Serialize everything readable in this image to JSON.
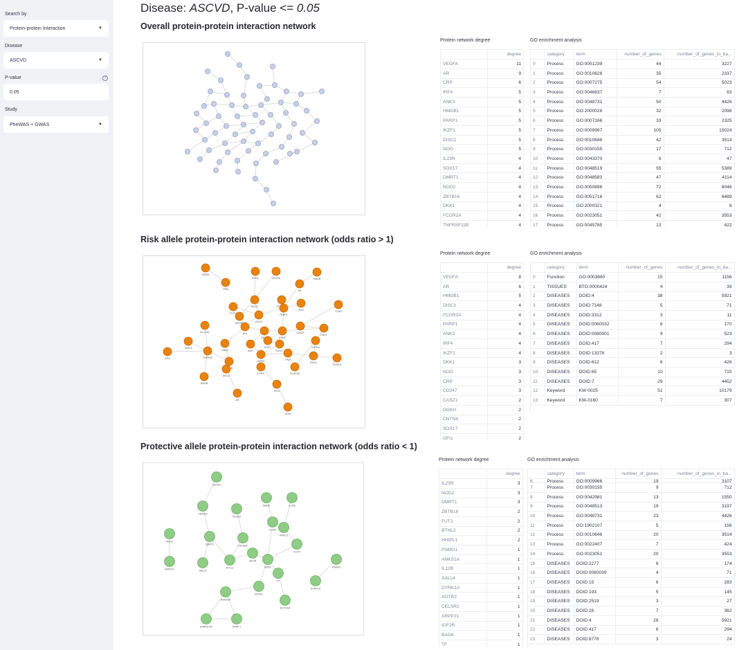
{
  "sidebar": {
    "search_by_label": "Search by",
    "search_by_value": "Protein-protein Interaction",
    "disease_label": "Disease",
    "disease_value": "ASCVD",
    "pvalue_label": "P-value",
    "pvalue_value": "0.05",
    "study_label": "Study",
    "study_value": "PheWAS + GWAS"
  },
  "header": {
    "title_prefix": "Disease: ",
    "title_disease": "ASCVD",
    "title_mid": ", P-value <= ",
    "title_pvalue": "0.05"
  },
  "sections": [
    {
      "title": "Overall protein-protein interaction network",
      "degree_caption": "Protein network degree",
      "go_caption": "GO enrichment analysis",
      "degree_header": "degree",
      "degree_rows": [
        [
          "VEGFA",
          "11"
        ],
        [
          "AR",
          "9"
        ],
        [
          "CRP",
          "6"
        ],
        [
          "IRF4",
          "5"
        ],
        [
          "ANK3",
          "5"
        ],
        [
          "HMGB1",
          "5"
        ],
        [
          "PARP1",
          "5"
        ],
        [
          "IKZF1",
          "5"
        ],
        [
          "DISC1",
          "5"
        ],
        [
          "NOG",
          "5"
        ],
        [
          "IL23R",
          "4"
        ],
        [
          "SOX17",
          "4"
        ],
        [
          "DMRT1",
          "4"
        ],
        [
          "NOD2",
          "4"
        ],
        [
          "ZBTB16",
          "4"
        ],
        [
          "DKK1",
          "4"
        ],
        [
          "FCGR2A",
          "4"
        ],
        [
          "TNFRSF11B",
          "4"
        ]
      ],
      "go_headers": [
        "",
        "category",
        "term",
        "number_of_genes",
        "number_of_genes_in_ba..."
      ],
      "go_rows": [
        [
          "0",
          "Process",
          "GO:0051239",
          "44",
          "3227"
        ],
        [
          "1",
          "Process",
          "GO:0010628",
          "35",
          "2337"
        ],
        [
          "2",
          "Process",
          "GO:0007275",
          "54",
          "5023"
        ],
        [
          "3",
          "Process",
          "GO:0046637",
          "7",
          "63"
        ],
        [
          "4",
          "Process",
          "GO:0048731",
          "50",
          "4426"
        ],
        [
          "5",
          "Process",
          "GO:2000026",
          "32",
          "2096"
        ],
        [
          "6",
          "Process",
          "GO:0007166",
          "33",
          "2325"
        ],
        [
          "7",
          "Process",
          "GO:0009987",
          "105",
          "15024"
        ],
        [
          "8",
          "Process",
          "GO:0010646",
          "42",
          "3514"
        ],
        [
          "9",
          "Process",
          "GO:0030155",
          "17",
          "712"
        ],
        [
          "10",
          "Process",
          "GO:0043370",
          "6",
          "47"
        ],
        [
          "11",
          "Process",
          "GO:0048519",
          "55",
          "5389"
        ],
        [
          "12",
          "Process",
          "GO:0048583",
          "47",
          "4114"
        ],
        [
          "13",
          "Process",
          "GO:0050896",
          "72",
          "8046"
        ],
        [
          "14",
          "Process",
          "GO:0051716",
          "62",
          "6489"
        ],
        [
          "15",
          "Process",
          "GO:2000321",
          "4",
          "8"
        ],
        [
          "16",
          "Process",
          "GO:0023051",
          "42",
          "3553"
        ],
        [
          "17",
          "Process",
          "GO:0045785",
          "13",
          "422"
        ]
      ]
    },
    {
      "title": "Risk allele protein-protein interaction network (odds ratio > 1)",
      "degree_caption": "Protein network degree",
      "go_caption": "GO enrichment analysis",
      "degree_header": "degree",
      "degree_rows": [
        [
          "VEGFA",
          "8"
        ],
        [
          "AR",
          "6"
        ],
        [
          "HMGB1",
          "5"
        ],
        [
          "DISC1",
          "4"
        ],
        [
          "FCGR2A",
          "4"
        ],
        [
          "PARP1",
          "4"
        ],
        [
          "ANK3",
          "4"
        ],
        [
          "IRF4",
          "4"
        ],
        [
          "IKZF1",
          "4"
        ],
        [
          "DKK1",
          "3"
        ],
        [
          "NOG",
          "3"
        ],
        [
          "CRP",
          "3"
        ],
        [
          "CD247",
          "3"
        ],
        [
          "CASZ1",
          "2"
        ],
        [
          "DGKH",
          "2"
        ],
        [
          "CNTN4",
          "2"
        ],
        [
          "SOX17",
          "2"
        ],
        [
          "GFI1",
          "2"
        ]
      ],
      "go_headers": [
        "",
        "category",
        "term",
        "number_of_genes",
        "number_of_genes_in_ba..."
      ],
      "go_rows": [
        [
          "0",
          "Function",
          "GO:0003690",
          "15",
          "1156"
        ],
        [
          "1",
          "TISSUES",
          "BTO:0000424",
          "4",
          "39"
        ],
        [
          "2",
          "DISEASES",
          "DOID:4",
          "38",
          "5921"
        ],
        [
          "3",
          "DISEASES",
          "DOID:7148",
          "5",
          "71"
        ],
        [
          "4",
          "DISEASES",
          "DOID:3312",
          "3",
          "11"
        ],
        [
          "5",
          "DISEASES",
          "DOID:0060032",
          "6",
          "170"
        ],
        [
          "6",
          "DISEASES",
          "DOID:0080001",
          "9",
          "523"
        ],
        [
          "7",
          "DISEASES",
          "DOID:417",
          "7",
          "294"
        ],
        [
          "8",
          "DISEASES",
          "DOID:13378",
          "2",
          "3"
        ],
        [
          "9",
          "DISEASES",
          "DOID:612",
          "8",
          "426"
        ],
        [
          "10",
          "DISEASES",
          "DOID:65",
          "10",
          "715"
        ],
        [
          "11",
          "DISEASES",
          "DOID:7",
          "29",
          "4452"
        ],
        [
          "12",
          "Keyword",
          "KW-0025",
          "51",
          "10179"
        ],
        [
          "13",
          "Keyword",
          "KW-0160",
          "7",
          "307"
        ]
      ]
    },
    {
      "title": "Protective allele protein-protein interaction network (odds ratio < 1)",
      "degree_caption": "Protein network degree",
      "go_caption": "GO enrichment analysis",
      "degree_header": "degree",
      "degree_rows": [
        [
          "IL23R",
          "3"
        ],
        [
          "NOD2",
          "3"
        ],
        [
          "DMRT1",
          "3"
        ],
        [
          "ZBTB16",
          "2"
        ],
        [
          "FUT2",
          "2"
        ],
        [
          "BTNL2",
          "2"
        ],
        [
          "HHIPL1",
          "2"
        ],
        [
          "PSMG1",
          "1"
        ],
        [
          "ANKS1A",
          "1"
        ],
        [
          "IL12B",
          "1"
        ],
        [
          "SALL4",
          "1"
        ],
        [
          "DYRK1A",
          "1"
        ],
        [
          "AGTR2",
          "1"
        ],
        [
          "CELSR2",
          "1"
        ],
        [
          "ARPP21",
          "1"
        ],
        [
          "IGF2R",
          "1"
        ],
        [
          "BAG6",
          "1"
        ],
        [
          "TF",
          "1"
        ]
      ],
      "go_headers": [
        "",
        "category",
        "term",
        "number_of_genes",
        "number_of_genes_in_ba..."
      ],
      "go_partial_row": [
        "6",
        "Process",
        "GO:0009966",
        "19",
        "3107"
      ],
      "go_rows": [
        [
          "7",
          "Process",
          "GO:0030155",
          "9",
          "712"
        ],
        [
          "8",
          "Process",
          "GO:0042981",
          "13",
          "1550"
        ],
        [
          "9",
          "Process",
          "GO:0048513",
          "19",
          "3197"
        ],
        [
          "10",
          "Process",
          "GO:0048731",
          "23",
          "4426"
        ],
        [
          "11",
          "Process",
          "GO:1902107",
          "5",
          "156"
        ],
        [
          "12",
          "Process",
          "GO:0010646",
          "20",
          "3514"
        ],
        [
          "13",
          "Process",
          "GO:0022407",
          "7",
          "424"
        ],
        [
          "14",
          "Process",
          "GO:0023051",
          "20",
          "3553"
        ],
        [
          "15",
          "DISEASES",
          "DOID:2277",
          "6",
          "174"
        ],
        [
          "16",
          "DISEASES",
          "DOID:0060039",
          "4",
          "71"
        ],
        [
          "17",
          "DISEASES",
          "DOID:15",
          "6",
          "283"
        ],
        [
          "18",
          "DISEASES",
          "DOID:193",
          "5",
          "145"
        ],
        [
          "19",
          "DISEASES",
          "DOID:2519",
          "3",
          "27"
        ],
        [
          "20",
          "DISEASES",
          "DOID:28",
          "7",
          "362"
        ],
        [
          "21",
          "DISEASES",
          "DOID:4",
          "28",
          "5921"
        ],
        [
          "22",
          "DISEASES",
          "DOID:417",
          "6",
          "294"
        ],
        [
          "23",
          "DISEASES",
          "DOID:8778",
          "3",
          "24"
        ]
      ]
    }
  ],
  "risk_network_labels": [
    "DEFB1",
    "TP63",
    "EDG1",
    "VEGFA",
    "MAOB",
    "DISC1",
    "PTPN",
    "FCGR2A",
    "AR",
    "IRF4",
    "CD40",
    "HMGB1",
    "CD247",
    "PARP1",
    "CASZ1",
    "SLC1A2",
    "BLK",
    "DEFB",
    "GDNF",
    "DKK1",
    "ANK3",
    "NOG",
    "IKZF1",
    "SOX17",
    "CNTN4",
    "DGKH",
    "GFI1",
    "TNFRSF",
    "HLA-B"
  ],
  "protective_network_labels": [
    "AGTR2",
    "ZBTB16",
    "PCSK9",
    "BAG6",
    "IL12B",
    "ANO3",
    "DMRT1",
    "CELSR2",
    "IL23R",
    "PRKCZ",
    "FUT2",
    "ARPP21",
    "SALL4",
    "KITLG",
    "IGF2R",
    "NOD2",
    "TF",
    "PSMG1",
    "DYRK1A",
    "BTNL2",
    "ANKS1A",
    "NOTCH4",
    "EPB41L4A",
    "HHIPL1"
  ],
  "colors": {
    "overall_node": "#c8cfe6",
    "overall_stroke": "#9aa5c8",
    "risk_node": "#e8830f",
    "risk_stroke": "#c66a05",
    "protective_node": "#8fcc86",
    "protective_stroke": "#6db064",
    "edge": "#d6d3cc"
  }
}
